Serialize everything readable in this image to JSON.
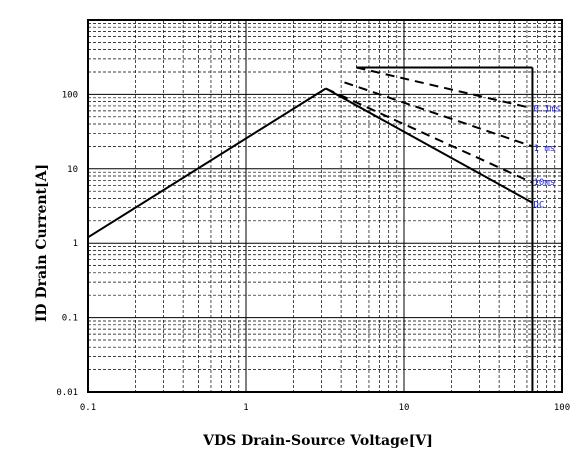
{
  "chart_data": {
    "type": "line",
    "xlabel": "VDS Drain-Source Voltage[V]",
    "ylabel": "ID Drain Current[A]",
    "x_scale": "log",
    "y_scale": "log",
    "xlim": [
      0.1,
      100
    ],
    "ylim": [
      0.01,
      1000
    ],
    "grid": true,
    "x_ticks": [
      {
        "value": 0.1,
        "label": "0.1"
      },
      {
        "value": 1,
        "label": "1"
      },
      {
        "value": 10,
        "label": "10"
      },
      {
        "value": 100,
        "label": "100"
      }
    ],
    "y_ticks": [
      {
        "value": 0.01,
        "label": "0.01"
      },
      {
        "value": 0.1,
        "label": "0.1"
      },
      {
        "value": 1,
        "label": "1"
      },
      {
        "value": 10,
        "label": "10"
      },
      {
        "value": 100,
        "label": "100"
      }
    ],
    "rds_on_limit": {
      "x": [
        0.1,
        3.2
      ],
      "y": [
        1.2,
        120
      ]
    },
    "current_limit": {
      "x": [
        5.0,
        65
      ],
      "y": [
        230,
        230
      ]
    },
    "vds_limit": {
      "x": [
        65,
        65
      ],
      "y": [
        230,
        0.01
      ]
    },
    "series": [
      {
        "name": "0.1ms",
        "style": "dashed",
        "x": [
          5.0,
          65
        ],
        "y": [
          230,
          65
        ]
      },
      {
        "name": "1 ms",
        "style": "dashed",
        "x": [
          4.2,
          65
        ],
        "y": [
          145,
          20
        ]
      },
      {
        "name": "10ms",
        "style": "dashed",
        "x": [
          3.2,
          65
        ],
        "y": [
          120,
          6.5
        ]
      },
      {
        "name": "DC",
        "style": "solid",
        "x": [
          3.2,
          65
        ],
        "y": [
          120,
          3.5
        ]
      }
    ],
    "series_labels": [
      {
        "text": "0.1ms",
        "x": 66,
        "y": 65
      },
      {
        "text": "1 ms",
        "x": 66,
        "y": 19
      },
      {
        "text": "10ms",
        "x": 66,
        "y": 6.6
      },
      {
        "text": "DC",
        "x": 66,
        "y": 3.3
      }
    ],
    "colors": {
      "line": "#000000",
      "grid": "#000000",
      "label": "#1a1aff"
    }
  }
}
